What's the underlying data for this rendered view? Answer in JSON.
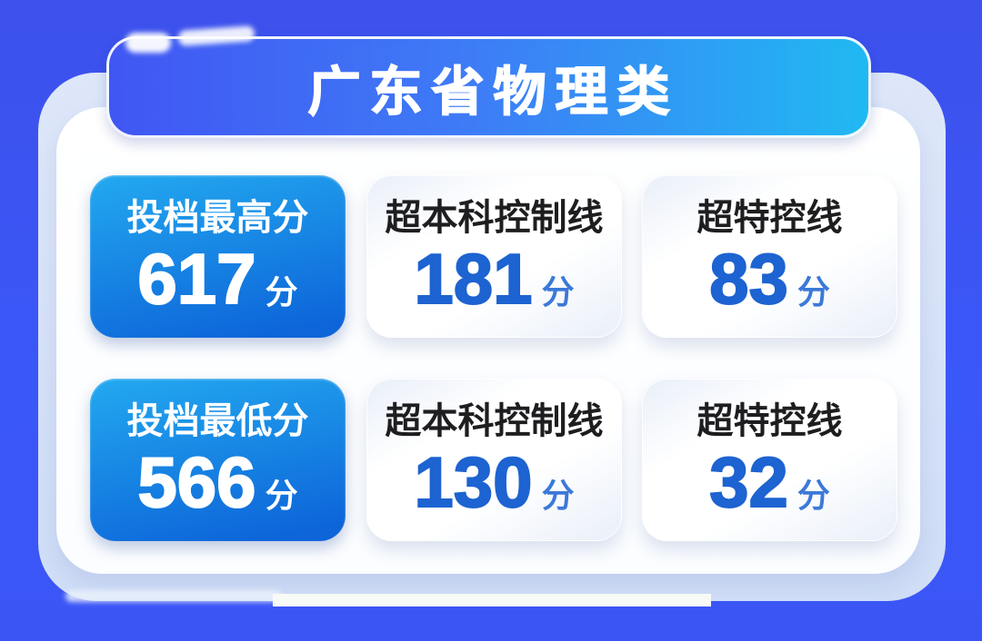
{
  "header": {
    "title": "广东省物理类"
  },
  "cards": [
    {
      "label": "投档最高分",
      "value": "617",
      "unit": "分",
      "style": "blue"
    },
    {
      "label": "超本科控制线",
      "value": "181",
      "unit": "分",
      "style": "white"
    },
    {
      "label": "超特控线",
      "value": "83",
      "unit": "分",
      "style": "white"
    },
    {
      "label": "投档最低分",
      "value": "566",
      "unit": "分",
      "style": "blue"
    },
    {
      "label": "超本科控制线",
      "value": "130",
      "unit": "分",
      "style": "white"
    },
    {
      "label": "超特控线",
      "value": "32",
      "unit": "分",
      "style": "white"
    }
  ],
  "colors": {
    "background": "#3B55F5",
    "banner_gradient_left": "#4156F3",
    "banner_gradient_right": "#20B9F2",
    "blue_card_top": "#23A9F0",
    "blue_card_bottom": "#0D65D9",
    "white_card": "#FFFFFF",
    "back_layer": "#D6E2F7",
    "number_blue": "#1D63D1",
    "label_dark": "#1E1E20",
    "text_white": "#FFFFFF"
  }
}
